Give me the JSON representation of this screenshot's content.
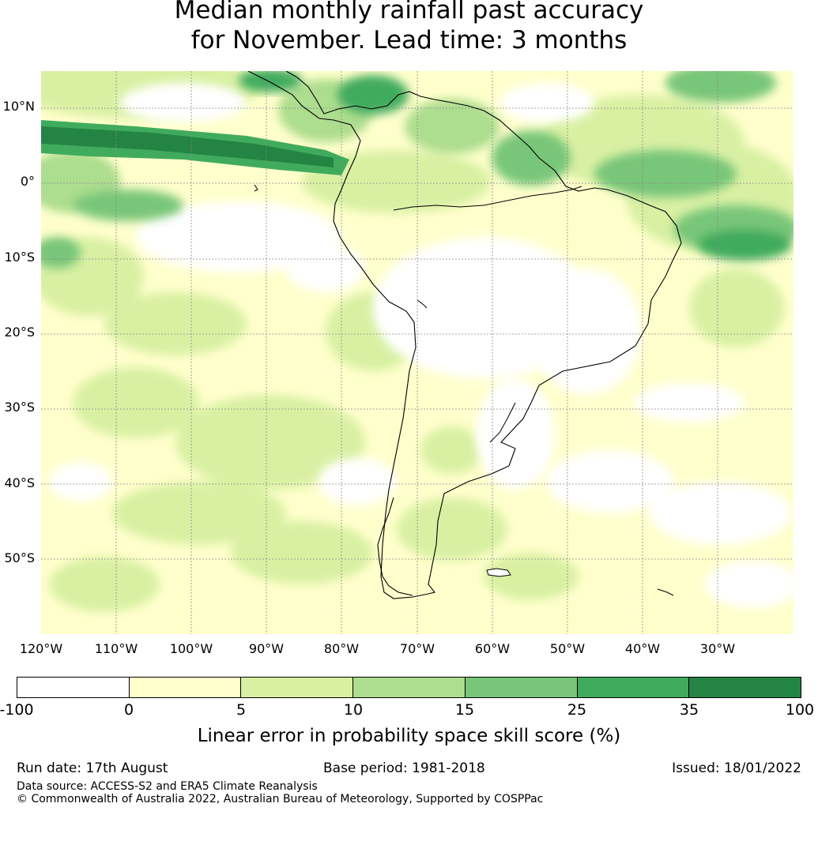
{
  "title": {
    "line1": "Median monthly rainfall past accuracy",
    "line2": "for November. Lead time: 3 months"
  },
  "map": {
    "region": "South America and surrounding oceans",
    "lat_ticks": [
      "10°N",
      "0°",
      "10°S",
      "20°S",
      "30°S",
      "40°S",
      "50°S"
    ],
    "lon_ticks": [
      "120°W",
      "110°W",
      "100°W",
      "90°W",
      "80°W",
      "70°W",
      "60°W",
      "50°W",
      "40°W",
      "30°W"
    ],
    "gridlines": true,
    "land_fill": "shaded by skill value, black coastline outline"
  },
  "colorbar": {
    "ticks": [
      "-100",
      "0",
      "5",
      "10",
      "15",
      "25",
      "35",
      "100"
    ],
    "colors": [
      "#ffffff",
      "#ffffcc",
      "#d9f0a3",
      "#addd8e",
      "#78c679",
      "#41ab5d",
      "#238443"
    ],
    "label": "Linear error in probability space skill score (%)"
  },
  "footer": {
    "run_date": "Run date: 17th August",
    "base_period": "Base period: 1981-2018",
    "issued": "Issued: 18/01/2022",
    "data_source": "Data source: ACCESS-S2 and ERA5 Climate Reanalysis",
    "copyright": "© Commonwealth of Australia 2022, Australian Bureau of Meteorology, Supported by COSPPac"
  }
}
